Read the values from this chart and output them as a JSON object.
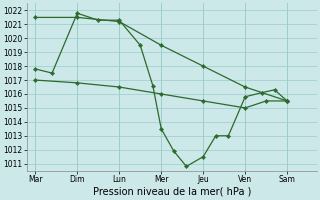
{
  "x_labels": [
    "Mar",
    "Dim",
    "Lun",
    "Mer",
    "Jeu",
    "Ven",
    "Sam"
  ],
  "ylim": [
    1010.5,
    1022.5
  ],
  "yticks": [
    1011,
    1012,
    1013,
    1014,
    1015,
    1016,
    1017,
    1018,
    1019,
    1020,
    1021,
    1022
  ],
  "xlabel": "Pression niveau de la mer( hPa )",
  "background_color": "#cce8e8",
  "grid_color": "#99cccc",
  "line_color": "#2d6a2d",
  "tick_label_fontsize": 5.5,
  "xlabel_fontsize": 7,
  "s1x": [
    0,
    1,
    2,
    3,
    4,
    5,
    6
  ],
  "s1y": [
    1021.5,
    1021.5,
    1021.2,
    1019.5,
    1018.0,
    1016.5,
    1015.5
  ],
  "s2x": [
    0,
    0.4,
    1,
    1.5,
    2,
    2.5,
    2.8,
    3,
    3.3,
    3.6,
    4,
    4.3,
    4.6,
    5,
    5.4,
    5.7,
    6
  ],
  "s2y": [
    1017.8,
    1017.5,
    1021.8,
    1021.3,
    1021.3,
    1019.5,
    1016.6,
    1013.5,
    1011.9,
    1010.8,
    1011.5,
    1013.0,
    1013.0,
    1015.8,
    1016.1,
    1016.3,
    1015.5
  ],
  "s3x": [
    0,
    1,
    2,
    3,
    4,
    5,
    5.5,
    6
  ],
  "s3y": [
    1017.0,
    1016.8,
    1016.5,
    1016.0,
    1015.5,
    1015.0,
    1015.5,
    1015.5
  ]
}
